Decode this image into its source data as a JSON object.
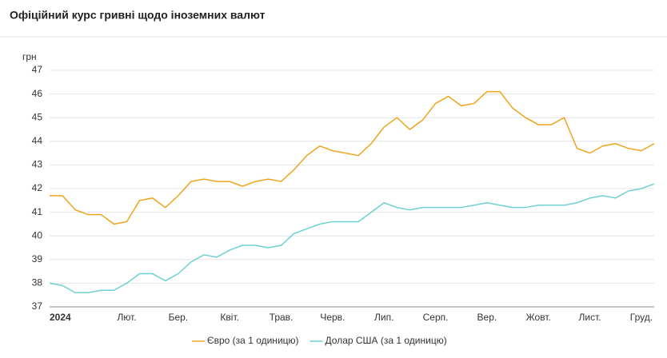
{
  "chart_data": {
    "type": "line",
    "title": "Офіційний курс гривні щодо іноземних валют",
    "y_label": "грн",
    "categories": [
      "2024",
      null,
      null,
      null,
      "Лют.",
      null,
      null,
      null,
      "Бер.",
      null,
      null,
      null,
      "Квіт.",
      null,
      null,
      null,
      "Трав.",
      null,
      null,
      null,
      "Черв.",
      null,
      null,
      null,
      "Лип.",
      null,
      null,
      null,
      "Серп.",
      null,
      null,
      null,
      "Вер.",
      null,
      null,
      null,
      "Жовт.",
      null,
      null,
      null,
      "Лист.",
      null,
      null,
      null,
      "Груд.",
      null,
      null,
      null
    ],
    "series": [
      {
        "name": "Євро (за 1 одиницю)",
        "color": "#eea51c",
        "values": [
          41.7,
          41.7,
          41.1,
          40.9,
          40.9,
          40.5,
          40.6,
          41.5,
          41.6,
          41.2,
          41.7,
          42.3,
          42.4,
          42.3,
          42.3,
          42.1,
          42.3,
          42.4,
          42.3,
          42.8,
          43.4,
          43.8,
          43.6,
          43.5,
          43.4,
          43.9,
          44.6,
          45.0,
          44.5,
          44.9,
          45.6,
          45.9,
          45.5,
          45.6,
          46.1,
          46.1,
          45.4,
          45.0,
          44.7,
          44.7,
          45.0,
          43.7,
          43.5,
          43.8,
          43.9,
          43.7,
          43.6,
          43.9
        ]
      },
      {
        "name": "Долар США (за 1 одиницю)",
        "color": "#6fd0d2",
        "values": [
          38.0,
          37.9,
          37.6,
          37.6,
          37.7,
          37.7,
          38.0,
          38.4,
          38.4,
          38.1,
          38.4,
          38.9,
          39.2,
          39.1,
          39.4,
          39.6,
          39.6,
          39.5,
          39.6,
          40.1,
          40.3,
          40.5,
          40.6,
          40.6,
          40.6,
          41.0,
          41.4,
          41.2,
          41.1,
          41.2,
          41.2,
          41.2,
          41.2,
          41.3,
          41.4,
          41.3,
          41.2,
          41.2,
          41.3,
          41.3,
          41.3,
          41.4,
          41.6,
          41.7,
          41.6,
          41.9,
          42.0,
          42.2
        ]
      }
    ],
    "ylim": [
      37,
      47
    ],
    "yticks": [
      37,
      38,
      39,
      40,
      41,
      42,
      43,
      44,
      45,
      46,
      47
    ],
    "grid": true
  }
}
